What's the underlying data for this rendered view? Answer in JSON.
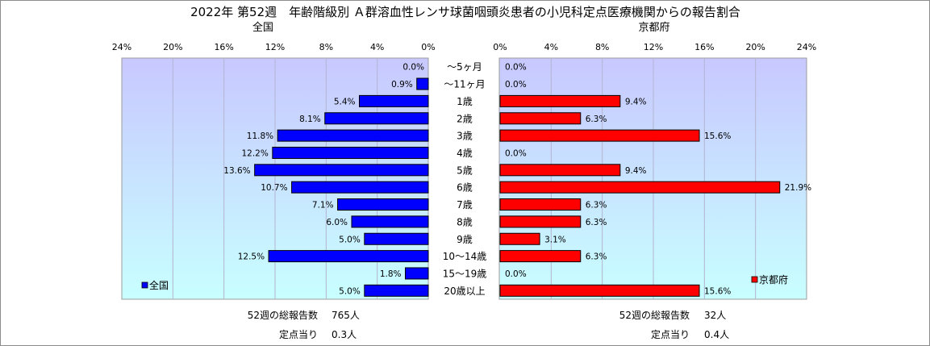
{
  "title": "2022年 第52週　年齢階級別 Ａ群溶血性レンサ球菌咽頭炎患者の小児科定点医療機関からの報告割合",
  "categories": [
    "～5ヶ月",
    "～11ヶ月",
    "1歳",
    "2歳",
    "3歳",
    "4歳",
    "5歳",
    "6歳",
    "7歳",
    "8歳",
    "9歳",
    "10～14歳",
    "15～19歳",
    "20歳以上"
  ],
  "chart_data": [
    {
      "type": "bar",
      "orientation": "horizontal",
      "direction": "right-to-left",
      "title": "全国",
      "categories": [
        "～5ヶ月",
        "～11ヶ月",
        "1歳",
        "2歳",
        "3歳",
        "4歳",
        "5歳",
        "6歳",
        "7歳",
        "8歳",
        "9歳",
        "10～14歳",
        "15～19歳",
        "20歳以上"
      ],
      "series": [
        {
          "name": "全国",
          "values": [
            0.0,
            0.9,
            5.4,
            8.1,
            11.8,
            12.2,
            13.6,
            10.7,
            7.1,
            6.0,
            5.0,
            12.5,
            1.8,
            5.0
          ]
        }
      ],
      "value_labels": [
        "0.0%",
        "0.9%",
        "5.4%",
        "8.1%",
        "11.8%",
        "12.2%",
        "13.6%",
        "10.7%",
        "7.1%",
        "6.0%",
        "5.0%",
        "12.5%",
        "1.8%",
        "5.0%"
      ],
      "xlim": [
        0,
        24
      ],
      "ticks": [
        "24%",
        "20%",
        "16%",
        "12%",
        "8%",
        "4%",
        "0%"
      ],
      "tick_values": [
        24,
        20,
        16,
        12,
        8,
        4,
        0
      ],
      "grid": true,
      "legend": "bottom-left",
      "legend_label": "全国",
      "color": "#0000ff"
    },
    {
      "type": "bar",
      "orientation": "horizontal",
      "direction": "left-to-right",
      "title": "京都府",
      "categories": [
        "～5ヶ月",
        "～11ヶ月",
        "1歳",
        "2歳",
        "3歳",
        "4歳",
        "5歳",
        "6歳",
        "7歳",
        "8歳",
        "9歳",
        "10～14歳",
        "15～19歳",
        "20歳以上"
      ],
      "series": [
        {
          "name": "京都府",
          "values": [
            0.0,
            0.0,
            9.4,
            6.3,
            15.6,
            0.0,
            9.4,
            21.9,
            6.3,
            6.3,
            3.1,
            6.3,
            0.0,
            15.6
          ]
        }
      ],
      "value_labels": [
        "0.0%",
        "0.0%",
        "9.4%",
        "6.3%",
        "15.6%",
        "0.0%",
        "9.4%",
        "21.9%",
        "6.3%",
        "6.3%",
        "3.1%",
        "6.3%",
        "0.0%",
        "15.6%"
      ],
      "xlim": [
        0,
        24
      ],
      "ticks": [
        "0%",
        "4%",
        "8%",
        "12%",
        "16%",
        "20%",
        "24%"
      ],
      "tick_values": [
        0,
        4,
        8,
        12,
        16,
        20,
        24
      ],
      "grid": true,
      "legend": "bottom-right",
      "legend_label": "京都府",
      "color": "#ff0000"
    }
  ],
  "footer": {
    "left": {
      "total_label": "52週の総報告数",
      "total_value": "765人",
      "per_label": "定点当り",
      "per_value": "0.3人"
    },
    "right": {
      "total_label": "52週の総報告数",
      "total_value": "32人",
      "per_label": "定点当り",
      "per_value": "0.4人"
    }
  },
  "colors": {
    "left_bar": "#0000ff",
    "right_bar": "#ff0000",
    "bar_border": "#000000",
    "plot_top": "#c8c8ff",
    "plot_bottom": "#c8ffff",
    "grid": "#b4b4d0"
  }
}
